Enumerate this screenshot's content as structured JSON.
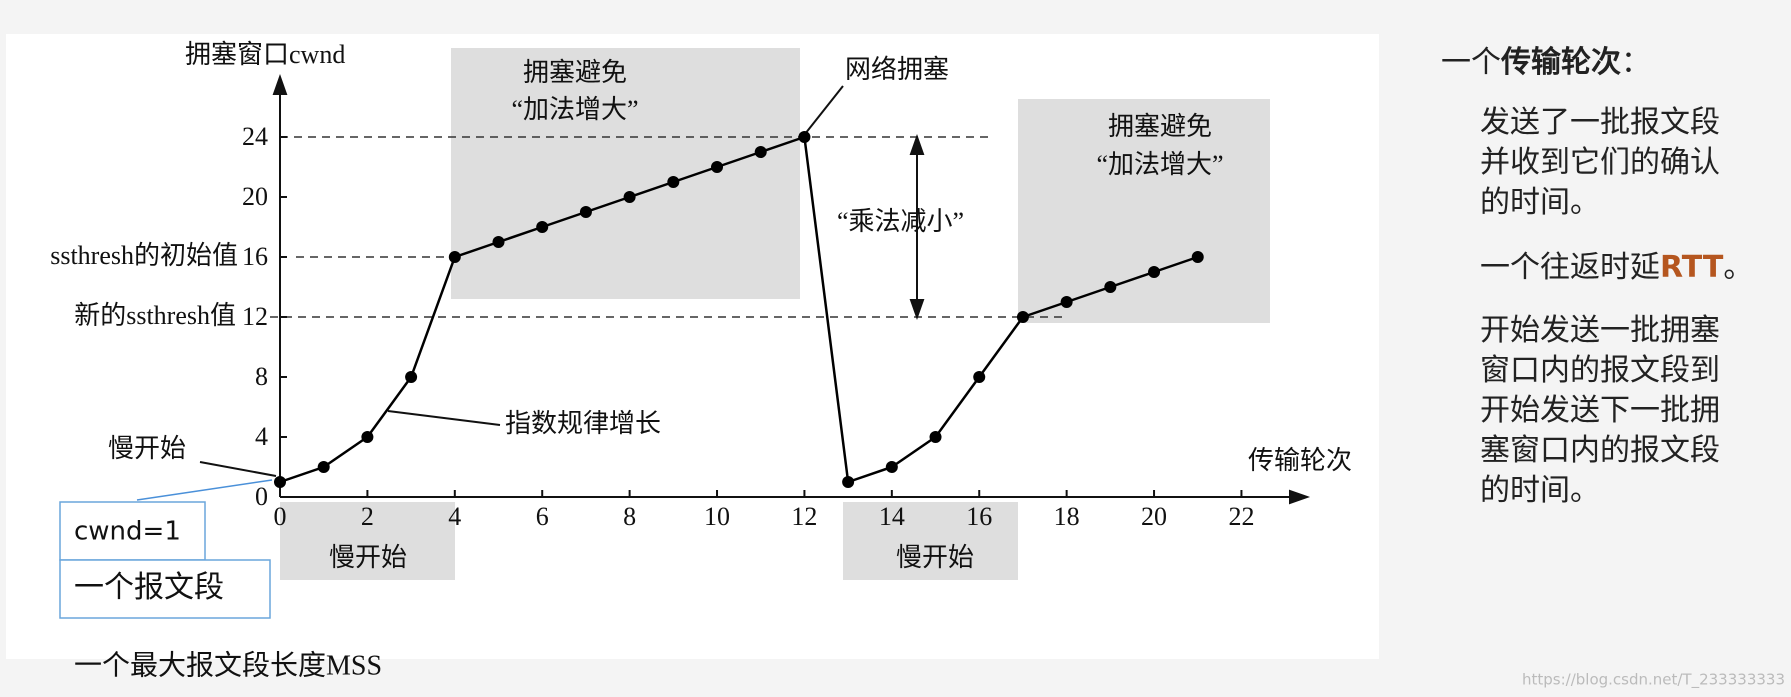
{
  "chart_data": {
    "type": "line",
    "x": [
      0,
      1,
      2,
      3,
      4,
      5,
      6,
      7,
      8,
      9,
      10,
      11,
      12,
      13,
      14,
      15,
      16,
      17,
      18,
      19,
      20,
      21
    ],
    "values": [
      1,
      2,
      4,
      8,
      16,
      17,
      18,
      19,
      20,
      21,
      22,
      23,
      24,
      1,
      2,
      4,
      8,
      12,
      13,
      14,
      15,
      16
    ],
    "color": "#000000",
    "xlim": [
      0,
      23.5
    ],
    "ylim": [
      0,
      28
    ],
    "xticks": [
      0,
      2,
      4,
      6,
      8,
      10,
      12,
      14,
      16,
      18,
      20,
      22
    ],
    "yticks": [
      0,
      4,
      8,
      12,
      16,
      20,
      24
    ],
    "x_label": "传输轮次",
    "y_label": "拥塞窗口cwnd",
    "annotations": {
      "congestion_avoidance_1": [
        "拥塞避免",
        "“加法增大”"
      ],
      "network_congestion": "网络拥塞",
      "multiplicative_decrease": "“乘法减小”",
      "ssthresh_initial": "ssthresh的初始值",
      "ssthresh_new": "新的ssthresh值",
      "slow_start_pointer": "慢开始",
      "exponential_growth": "指数规律增长",
      "slow_start_1": "慢开始",
      "slow_start_2": "慢开始",
      "congestion_avoidance_2": [
        "拥塞避免",
        "“加法增大”"
      ]
    }
  },
  "legend_boxes": {
    "cwnd": "cwnd=1",
    "segment": "一个报文段",
    "mss": "一个最大报文段长度MSS"
  },
  "side_panel": {
    "title": [
      "一个",
      "传输轮次",
      "："
    ],
    "paragraph_1": [
      "发送了一批报文段",
      "并收到它们的确认",
      "的时间。"
    ],
    "paragraph_2": [
      "一个往返时延",
      "RTT",
      "。"
    ],
    "paragraph_3": [
      "开始发送一批拥塞",
      "窗口内的报文段到",
      "开始发送下一批拥",
      "塞窗口内的报文段",
      "的时间。"
    ]
  },
  "watermark": "https://blog.csdn.net/T_233333333"
}
